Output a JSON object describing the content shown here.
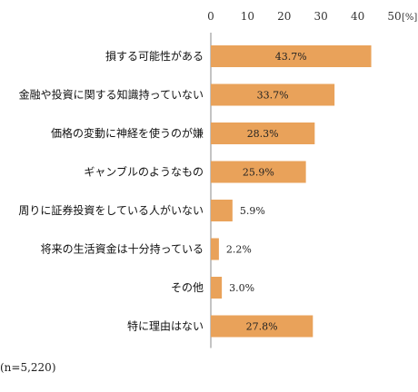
{
  "chart_data": {
    "type": "bar",
    "orientation": "horizontal",
    "categories": [
      "損する可能性がある",
      "金融や投資に関する知識持っていない",
      "価格の変動に神経を使うのが嫌",
      "ギャンブルのようなもの",
      "周りに証券投資をしている人がいない",
      "将来の生活資金は十分持っている",
      "その他",
      "特に理由はない"
    ],
    "values": [
      43.7,
      33.7,
      28.3,
      25.9,
      5.9,
      2.2,
      3.0,
      27.8
    ],
    "value_labels": [
      "43.7%",
      "33.7%",
      "28.3%",
      "25.9%",
      "5.9%",
      "2.2%",
      "3.0%",
      "27.8%"
    ],
    "xlim": [
      0,
      50
    ],
    "xticks": [
      "0",
      "10",
      "20",
      "30",
      "40",
      "50"
    ],
    "unit": "[%]",
    "bar_color": "#e9a25a",
    "grid": false
  },
  "note": "(n=5,220)"
}
